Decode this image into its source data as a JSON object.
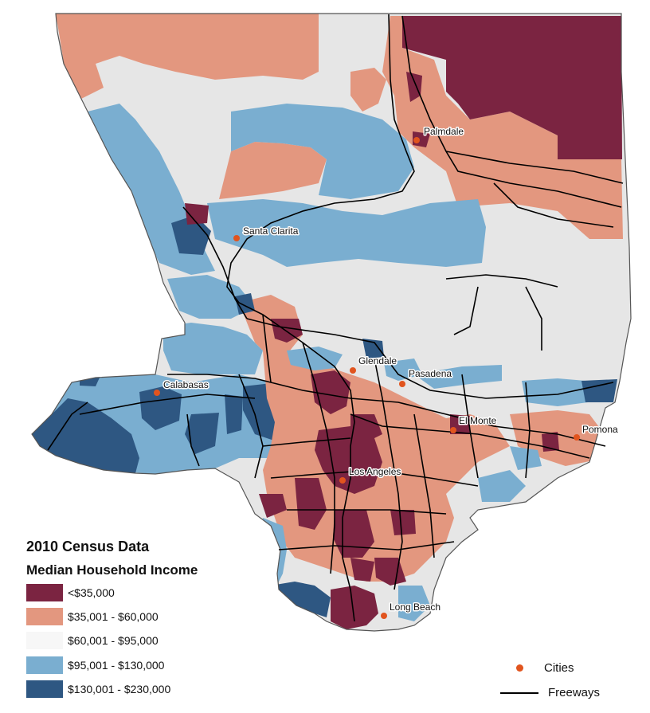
{
  "colors": {
    "class1": "#7b2441",
    "class2": "#e3977f",
    "class3": "#e6e6e6",
    "class3_legend": "#f7f7f7",
    "class4": "#7aaed0",
    "class5": "#2e5782",
    "city_dot": "#e1541e",
    "freeway": "#000000",
    "outline": "#555555"
  },
  "legend": {
    "title": "2010 Census Data",
    "subtitle": "Median Household Income",
    "classes": [
      {
        "label": "<$35,000",
        "color": "#7b2441"
      },
      {
        "label": "$35,001 - $60,000",
        "color": "#e3977f"
      },
      {
        "label": "$60,001 - $95,000",
        "color": "#f7f7f7"
      },
      {
        "label": "$95,001 - $130,000",
        "color": "#7aaed0"
      },
      {
        "label": "$130,001 - $230,000",
        "color": "#2e5782"
      }
    ],
    "symbols": {
      "cities": "Cities",
      "freeways": "Freeways"
    }
  },
  "cities": [
    {
      "name": "Palmdale"
    },
    {
      "name": "Santa Clarita"
    },
    {
      "name": "Glendale"
    },
    {
      "name": "Pasadena"
    },
    {
      "name": "Calabasas"
    },
    {
      "name": "El Monte"
    },
    {
      "name": "Pomona"
    },
    {
      "name": "Los Angeles"
    },
    {
      "name": "Long Beach"
    }
  ]
}
